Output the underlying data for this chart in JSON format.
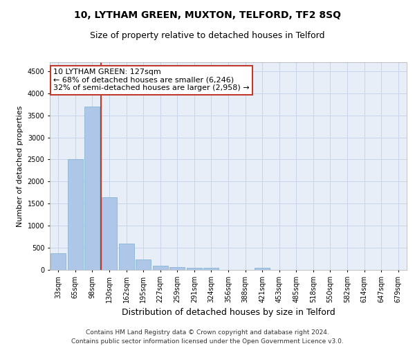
{
  "title": "10, LYTHAM GREEN, MUXTON, TELFORD, TF2 8SQ",
  "subtitle": "Size of property relative to detached houses in Telford",
  "xlabel": "Distribution of detached houses by size in Telford",
  "ylabel": "Number of detached properties",
  "categories": [
    "33sqm",
    "65sqm",
    "98sqm",
    "130sqm",
    "162sqm",
    "195sqm",
    "227sqm",
    "259sqm",
    "291sqm",
    "324sqm",
    "356sqm",
    "388sqm",
    "421sqm",
    "453sqm",
    "485sqm",
    "518sqm",
    "550sqm",
    "582sqm",
    "614sqm",
    "647sqm",
    "679sqm"
  ],
  "values": [
    370,
    2510,
    3700,
    1640,
    590,
    230,
    100,
    60,
    50,
    40,
    5,
    0,
    50,
    0,
    0,
    0,
    0,
    0,
    0,
    0,
    0
  ],
  "bar_color": "#aec6e8",
  "bar_edge_color": "#7aaecc",
  "vline_x": 2.5,
  "vline_color": "#c0392b",
  "annotation_text": "10 LYTHAM GREEN: 127sqm\n← 68% of detached houses are smaller (6,246)\n32% of semi-detached houses are larger (2,958) →",
  "annotation_box_color": "#c0392b",
  "ylim": [
    0,
    4700
  ],
  "yticks": [
    0,
    500,
    1000,
    1500,
    2000,
    2500,
    3000,
    3500,
    4000,
    4500
  ],
  "grid_color": "#c8d4e8",
  "bg_color": "#e8eef8",
  "footer": "Contains HM Land Registry data © Crown copyright and database right 2024.\nContains public sector information licensed under the Open Government Licence v3.0.",
  "title_fontsize": 10,
  "subtitle_fontsize": 9,
  "xlabel_fontsize": 9,
  "ylabel_fontsize": 8,
  "tick_fontsize": 7,
  "annotation_fontsize": 8,
  "footer_fontsize": 6.5
}
